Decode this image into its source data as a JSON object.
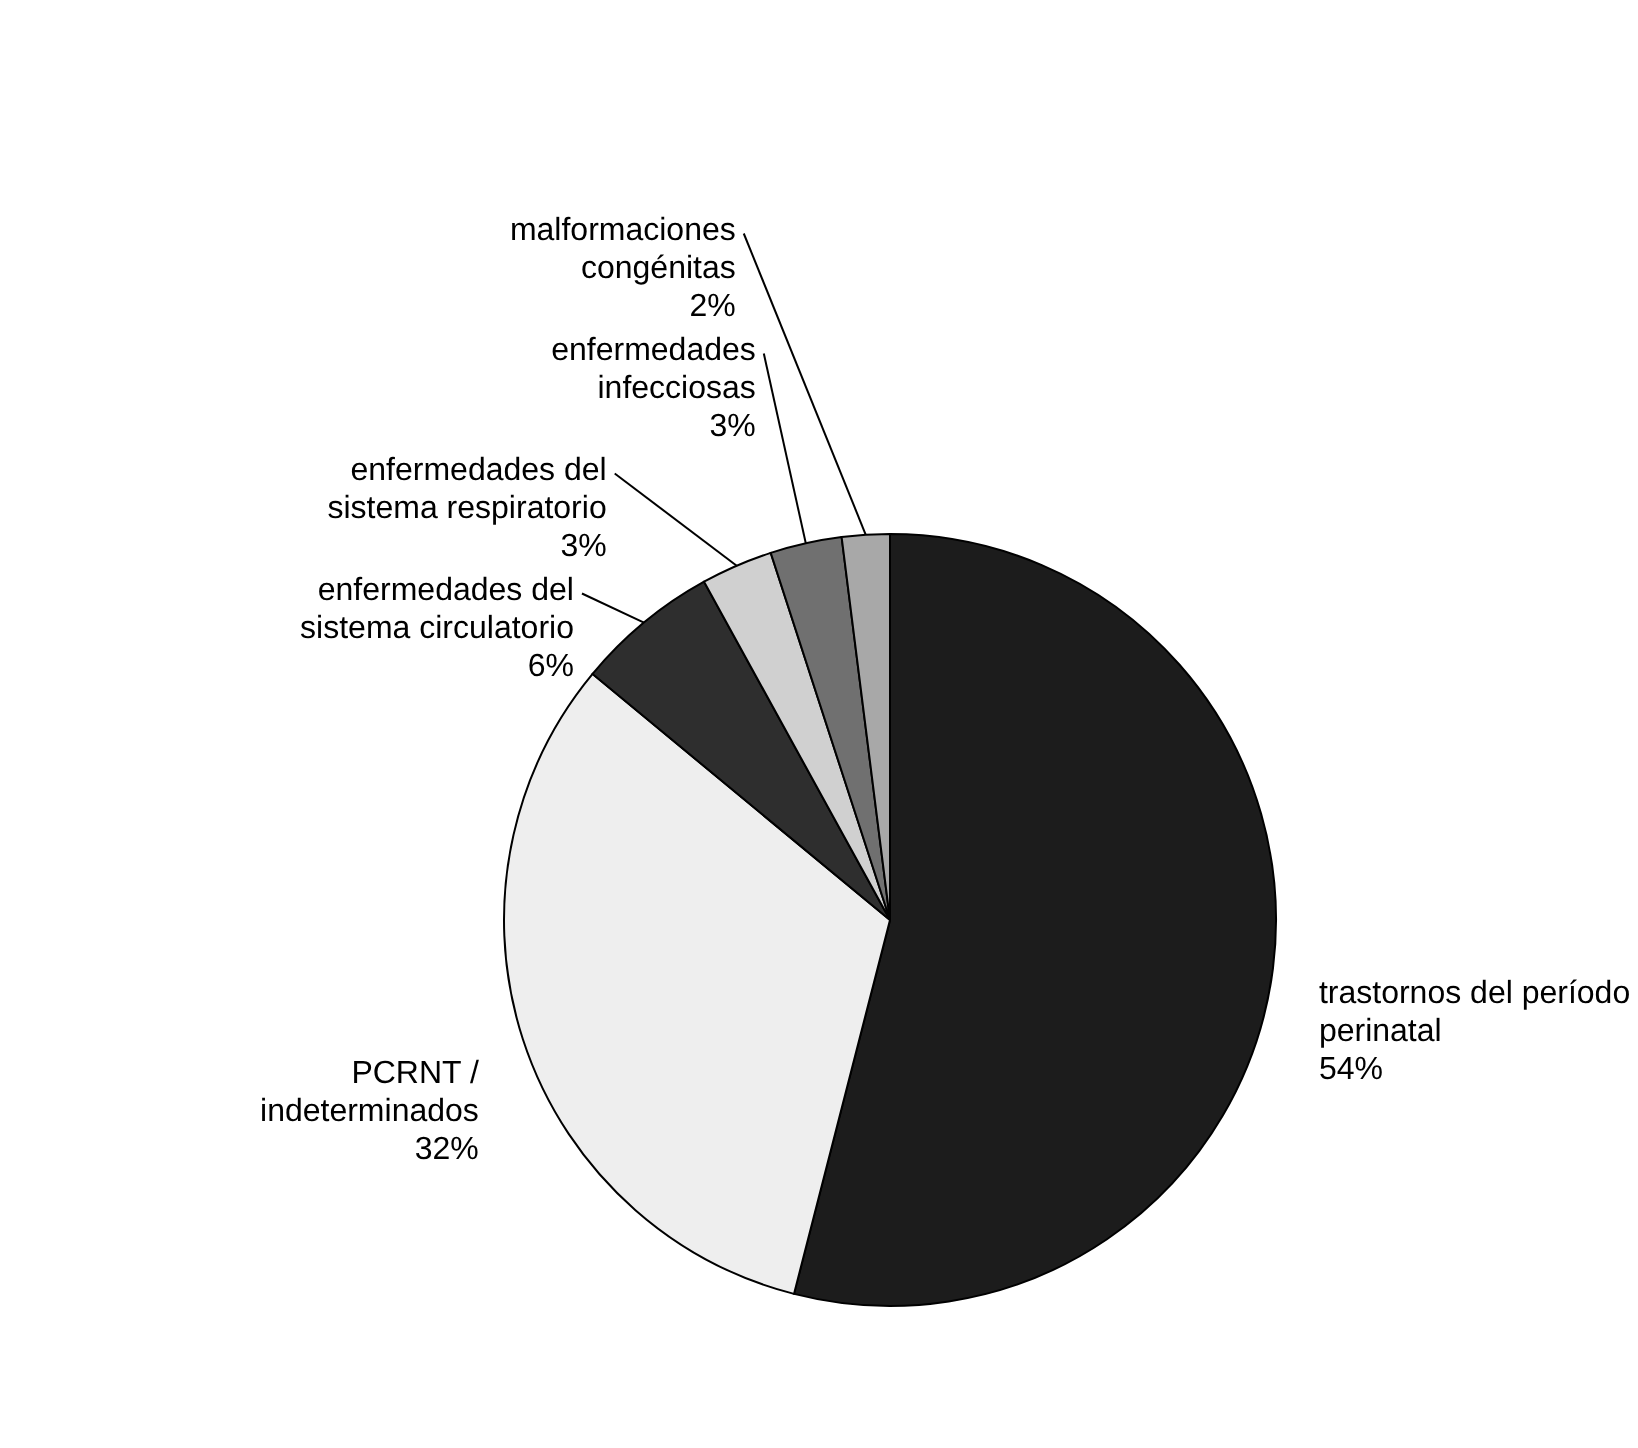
{
  "chart_data": {
    "type": "pie",
    "categories": [
      "trastornos del período\nperinatal",
      "PCRNT /\nindeterminados",
      "enfermedades del\nsistema circulatorio",
      "enfermedades del\nsistema respiratorio",
      "enfermedades\ninfecciosas",
      "malformaciones\ncongénitas"
    ],
    "values": [
      54,
      32,
      6,
      3,
      3,
      2
    ],
    "value_labels": [
      "54%",
      "32%",
      "6%",
      "3%",
      "3%",
      "2%"
    ],
    "colors": [
      "#1c1c1c",
      "#eeeeee",
      "#2e2e2e",
      "#d0d0d0",
      "#707070",
      "#a8a8a8"
    ]
  }
}
